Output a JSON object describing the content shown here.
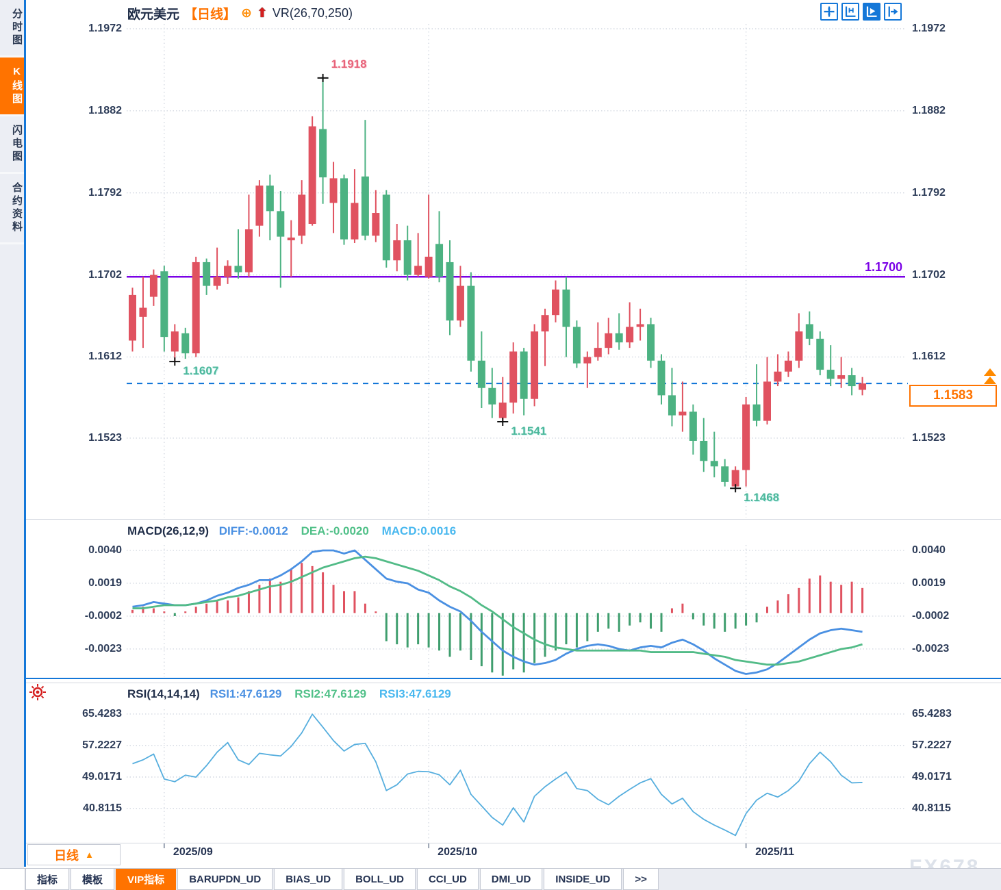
{
  "header": {
    "symbol": "欧元美元",
    "period_tag": "【日线】",
    "overlay_indicator": "VR(26,70,250)"
  },
  "toolbar": {
    "icons": [
      {
        "name": "crosshair-icon",
        "active": false
      },
      {
        "name": "y-axis-scale-icon",
        "active": false
      },
      {
        "name": "auto-scale-icon",
        "active": true
      },
      {
        "name": "pan-right-icon",
        "active": false
      }
    ]
  },
  "sidebar": {
    "items": [
      {
        "label": "分时图",
        "active": false
      },
      {
        "label": "K线图",
        "active": true
      },
      {
        "label": "闪电图",
        "active": false
      },
      {
        "label": "合约资料",
        "active": false
      }
    ]
  },
  "macd_header": {
    "name": "MACD(26,12,9)",
    "diff": "DIFF:-0.0012",
    "dea": "DEA:-0.0020",
    "macd": "MACD:0.0016"
  },
  "rsi_header": {
    "name": "RSI(14,14,14)",
    "rsi1": "RSI1:47.6129",
    "rsi2": "RSI2:47.6129",
    "rsi3": "RSI3:47.6129"
  },
  "x_axis": {
    "months": [
      {
        "label": "2025/09",
        "index": 3
      },
      {
        "label": "2025/10",
        "index": 28
      },
      {
        "label": "2025/11",
        "index": 58
      }
    ]
  },
  "bottom_bar": {
    "period_label": "日线",
    "period_arrow": "▲",
    "tabs": [
      {
        "label": "指标",
        "active": false
      },
      {
        "label": "模板",
        "active": false
      },
      {
        "label": "VIP指标",
        "active": true
      },
      {
        "label": "BARUPDN_UD",
        "active": false
      },
      {
        "label": "BIAS_UD",
        "active": false
      },
      {
        "label": "BOLL_UD",
        "active": false
      },
      {
        "label": "CCI_UD",
        "active": false
      },
      {
        "label": "DMI_UD",
        "active": false
      },
      {
        "label": "INSIDE_UD",
        "active": false
      },
      {
        "label": ">>",
        "active": false
      }
    ]
  },
  "watermark": "FX678",
  "colors": {
    "up": "#e05260",
    "down": "#4cb282",
    "purple_line": "#7a00e6",
    "dashed_line": "#1477d8",
    "orange": "#ff7300",
    "diff_line": "#4a90e2",
    "dea_line": "#52bb87",
    "rsi_line": "#56aede",
    "grid": "#d4d9e2",
    "axis_text": "#2e3d59"
  },
  "chart_data": [
    {
      "type": "candlestick",
      "title": "欧元美元 日线",
      "ylabel": "price",
      "yticks": [
        1.1972,
        1.1882,
        1.1792,
        1.1702,
        1.1612,
        1.1523
      ],
      "ylim": [
        1.1435,
        1.198
      ],
      "candles": [
        [
          1.163,
          1.1688,
          1.1618,
          1.168
        ],
        [
          1.1656,
          1.17,
          1.1622,
          1.1666
        ],
        [
          1.1678,
          1.1708,
          1.1668,
          1.1702
        ],
        [
          1.1706,
          1.1712,
          1.1618,
          1.1634
        ],
        [
          1.1618,
          1.1648,
          1.1607,
          1.164
        ],
        [
          1.1638,
          1.1644,
          1.161,
          1.1616
        ],
        [
          1.1616,
          1.1722,
          1.1612,
          1.1716
        ],
        [
          1.1716,
          1.172,
          1.168,
          1.169
        ],
        [
          1.169,
          1.1732,
          1.1686,
          1.17
        ],
        [
          1.17,
          1.1718,
          1.1692,
          1.1712
        ],
        [
          1.1712,
          1.1752,
          1.1698,
          1.1705
        ],
        [
          1.1705,
          1.179,
          1.17,
          1.1752
        ],
        [
          1.1756,
          1.1806,
          1.1744,
          1.18
        ],
        [
          1.18,
          1.1812,
          1.174,
          1.1772
        ],
        [
          1.1772,
          1.1794,
          1.1688,
          1.1744
        ],
        [
          1.174,
          1.1762,
          1.17,
          1.1743
        ],
        [
          1.1745,
          1.1806,
          1.1736,
          1.179
        ],
        [
          1.1758,
          1.1876,
          1.1756,
          1.1865
        ],
        [
          1.1862,
          1.1918,
          1.178,
          1.1809
        ],
        [
          1.1781,
          1.1826,
          1.1748,
          1.1808
        ],
        [
          1.1808,
          1.1812,
          1.1735,
          1.1741
        ],
        [
          1.1741,
          1.1818,
          1.1737,
          1.1781
        ],
        [
          1.181,
          1.1872,
          1.174,
          1.1745
        ],
        [
          1.1745,
          1.1795,
          1.1738,
          1.177
        ],
        [
          1.179,
          1.1795,
          1.171,
          1.1718
        ],
        [
          1.1718,
          1.1758,
          1.1706,
          1.174
        ],
        [
          1.174,
          1.1756,
          1.1696,
          1.1702
        ],
        [
          1.1702,
          1.1748,
          1.17,
          1.1712
        ],
        [
          1.17,
          1.179,
          1.1698,
          1.1722
        ],
        [
          1.1736,
          1.1772,
          1.1694,
          1.17
        ],
        [
          1.1716,
          1.174,
          1.1636,
          1.1652
        ],
        [
          1.1652,
          1.1712,
          1.1645,
          1.169
        ],
        [
          1.169,
          1.1705,
          1.1596,
          1.1608
        ],
        [
          1.1608,
          1.164,
          1.1556,
          1.1578
        ],
        [
          1.1578,
          1.16,
          1.1545,
          1.156
        ],
        [
          1.1545,
          1.159,
          1.1541,
          1.1562
        ],
        [
          1.1562,
          1.1628,
          1.155,
          1.1618
        ],
        [
          1.1618,
          1.1622,
          1.1548,
          1.1566
        ],
        [
          1.1566,
          1.1648,
          1.1558,
          1.164
        ],
        [
          1.164,
          1.1665,
          1.1602,
          1.1658
        ],
        [
          1.1658,
          1.1696,
          1.165,
          1.1686
        ],
        [
          1.1686,
          1.17,
          1.1612,
          1.1645
        ],
        [
          1.1645,
          1.1652,
          1.16,
          1.1605
        ],
        [
          1.1605,
          1.1618,
          1.1578,
          1.1612
        ],
        [
          1.1612,
          1.165,
          1.1608,
          1.1622
        ],
        [
          1.1622,
          1.1655,
          1.1615,
          1.1638
        ],
        [
          1.1638,
          1.166,
          1.162,
          1.1628
        ],
        [
          1.1628,
          1.1672,
          1.1622,
          1.1645
        ],
        [
          1.1645,
          1.1665,
          1.163,
          1.1648
        ],
        [
          1.1648,
          1.1655,
          1.16,
          1.1608
        ],
        [
          1.1608,
          1.1615,
          1.156,
          1.157
        ],
        [
          1.157,
          1.16,
          1.1536,
          1.1548
        ],
        [
          1.1548,
          1.1585,
          1.153,
          1.1552
        ],
        [
          1.1552,
          1.156,
          1.1505,
          1.152
        ],
        [
          1.152,
          1.1545,
          1.1486,
          1.1498
        ],
        [
          1.1498,
          1.153,
          1.148,
          1.1492
        ],
        [
          1.1492,
          1.15,
          1.147,
          1.1475
        ],
        [
          1.147,
          1.1492,
          1.1468,
          1.1488
        ],
        [
          1.1488,
          1.1568,
          1.147,
          1.156
        ],
        [
          1.156,
          1.1604,
          1.1536,
          1.1542
        ],
        [
          1.1542,
          1.1612,
          1.1538,
          1.1585
        ],
        [
          1.1585,
          1.1615,
          1.158,
          1.1596
        ],
        [
          1.1596,
          1.1618,
          1.159,
          1.1608
        ],
        [
          1.1608,
          1.166,
          1.16,
          1.164
        ],
        [
          1.1648,
          1.1662,
          1.1625,
          1.1632
        ],
        [
          1.1632,
          1.164,
          1.1592,
          1.1598
        ],
        [
          1.1598,
          1.1625,
          1.158,
          1.1588
        ],
        [
          1.1588,
          1.1612,
          1.1578,
          1.1592
        ],
        [
          1.1592,
          1.16,
          1.157,
          1.158
        ],
        [
          1.1576,
          1.159,
          1.157,
          1.1583
        ]
      ],
      "hlines": [
        {
          "price": 1.17,
          "label": "1.1700",
          "style": "solid",
          "color": "purple"
        },
        {
          "price": 1.1583,
          "label": "1.1583",
          "style": "dashed",
          "color": "blue",
          "tag": "last-price"
        }
      ],
      "annotations": [
        {
          "index": 18,
          "price": 1.1918,
          "text": "1.1918",
          "kind": "high"
        },
        {
          "index": 4,
          "price": 1.1607,
          "text": "1.1607",
          "kind": "low"
        },
        {
          "index": 35,
          "price": 1.1541,
          "text": "1.1541",
          "kind": "low"
        },
        {
          "index": 57,
          "price": 1.1468,
          "text": "1.1468",
          "kind": "low"
        }
      ]
    },
    {
      "type": "macd",
      "title": "MACD(26,12,9)",
      "yticks": [
        0.004,
        0.0019,
        -0.0002,
        -0.0023
      ],
      "last": {
        "diff": -0.0012,
        "dea": -0.002,
        "macd": 0.0016
      },
      "hist": [
        0.0002,
        0.0004,
        0.0003,
        0.0001,
        -0.0002,
        0.0001,
        0.0004,
        0.0006,
        0.0008,
        0.0008,
        0.001,
        0.0014,
        0.0018,
        0.0022,
        0.002,
        0.0028,
        0.0032,
        0.003,
        0.0026,
        0.0018,
        0.0014,
        0.0014,
        0.0006,
        0.0001,
        -0.0018,
        -0.002,
        -0.0022,
        -0.002,
        -0.0022,
        -0.0024,
        -0.0028,
        -0.0024,
        -0.003,
        -0.0034,
        -0.0038,
        -0.004,
        -0.0036,
        -0.0038,
        -0.0032,
        -0.0028,
        -0.0024,
        -0.002,
        -0.0022,
        -0.0018,
        -0.0012,
        -0.001,
        -0.0012,
        -0.0008,
        -0.0006,
        -0.001,
        -0.0012,
        0.0003,
        0.0006,
        -0.0004,
        -0.0008,
        -0.001,
        -0.0012,
        -0.001,
        -0.0008,
        -0.0006,
        0.0004,
        0.0008,
        0.0012,
        0.0016,
        0.0022,
        0.0024,
        0.002,
        0.0018,
        0.002,
        0.0016
      ],
      "diff": [
        0.0004,
        0.0005,
        0.0007,
        0.0006,
        0.0005,
        0.0005,
        0.0006,
        0.0008,
        0.0011,
        0.0013,
        0.0016,
        0.0018,
        0.0021,
        0.0021,
        0.0024,
        0.0028,
        0.0033,
        0.0039,
        0.004,
        0.004,
        0.0038,
        0.004,
        0.0034,
        0.0028,
        0.0022,
        0.002,
        0.0019,
        0.0015,
        0.0013,
        0.0008,
        0.0004,
        0.0001,
        -0.0005,
        -0.0012,
        -0.0018,
        -0.0024,
        -0.0028,
        -0.0031,
        -0.0033,
        -0.0032,
        -0.003,
        -0.0026,
        -0.0023,
        -0.0021,
        -0.002,
        -0.0021,
        -0.0023,
        -0.0024,
        -0.0022,
        -0.0021,
        -0.0022,
        -0.0019,
        -0.0017,
        -0.002,
        -0.0024,
        -0.0029,
        -0.0033,
        -0.0037,
        -0.0039,
        -0.0038,
        -0.0036,
        -0.0032,
        -0.0027,
        -0.0022,
        -0.0017,
        -0.0013,
        -0.0011,
        -0.001,
        -0.0011,
        -0.0012
      ],
      "dea": [
        0.0003,
        0.0003,
        0.0004,
        0.0005,
        0.0005,
        0.0005,
        0.0006,
        0.0007,
        0.0008,
        0.001,
        0.0011,
        0.0013,
        0.0015,
        0.0017,
        0.0018,
        0.002,
        0.0023,
        0.0026,
        0.0029,
        0.0031,
        0.0033,
        0.0035,
        0.0036,
        0.0035,
        0.0033,
        0.0031,
        0.0029,
        0.0027,
        0.0024,
        0.0021,
        0.0017,
        0.0014,
        0.001,
        0.0005,
        0.0001,
        -0.0004,
        -0.0009,
        -0.0013,
        -0.0017,
        -0.002,
        -0.0022,
        -0.0023,
        -0.0024,
        -0.0024,
        -0.0024,
        -0.0024,
        -0.0024,
        -0.0024,
        -0.0024,
        -0.0025,
        -0.0025,
        -0.0025,
        -0.0025,
        -0.0025,
        -0.0026,
        -0.0027,
        -0.0028,
        -0.003,
        -0.0031,
        -0.0032,
        -0.0033,
        -0.0033,
        -0.0032,
        -0.0031,
        -0.0029,
        -0.0027,
        -0.0025,
        -0.0023,
        -0.0022,
        -0.002
      ]
    },
    {
      "type": "line",
      "title": "RSI(14,14,14)",
      "yticks": [
        65.4283,
        57.2227,
        49.0171,
        40.8115
      ],
      "last": {
        "rsi1": 47.6129,
        "rsi2": 47.6129,
        "rsi3": 47.6129
      },
      "values": [
        52.5,
        53.5,
        55.0,
        48.5,
        47.8,
        49.5,
        49.0,
        52.0,
        55.5,
        58.0,
        53.5,
        52.3,
        55.2,
        54.8,
        54.5,
        57.0,
        60.5,
        65.4,
        62.0,
        58.5,
        55.8,
        57.5,
        57.8,
        53.0,
        45.5,
        47.0,
        49.8,
        50.5,
        50.4,
        49.6,
        47.0,
        50.8,
        44.5,
        41.5,
        38.5,
        36.5,
        41.0,
        37.3,
        44.0,
        46.5,
        48.5,
        50.3,
        46.0,
        45.5,
        43.2,
        41.8,
        44.0,
        45.8,
        47.5,
        48.6,
        44.5,
        42.0,
        43.5,
        40.0,
        38.0,
        36.5,
        35.2,
        33.8,
        39.5,
        43.0,
        44.8,
        43.8,
        45.5,
        48.0,
        52.5,
        55.5,
        53.0,
        49.5,
        47.5,
        47.6
      ]
    }
  ]
}
